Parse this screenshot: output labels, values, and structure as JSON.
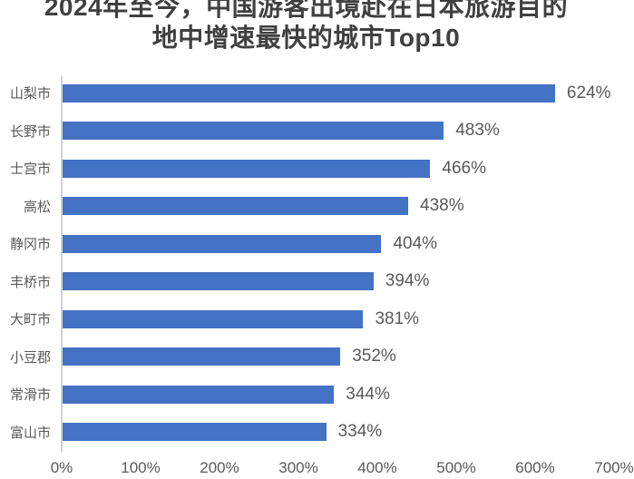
{
  "title": {
    "line1": "2024年至今，中国游客出境赴在日本旅游目的",
    "line2": "地中增速最快的城市Top10"
  },
  "chart_data": {
    "type": "bar",
    "orientation": "horizontal",
    "title": "2024年至今，中国游客出境赴在日本旅游目的地中增速最快的城市Top10",
    "categories": [
      "山梨市",
      "长野市",
      "士宫市",
      "高松",
      "静冈市",
      "丰桥市",
      "大町市",
      "小豆郡",
      "常滑市",
      "富山市"
    ],
    "values": [
      624,
      483,
      466,
      438,
      404,
      394,
      381,
      352,
      344,
      334
    ],
    "value_labels": [
      "624%",
      "483%",
      "466%",
      "438%",
      "404%",
      "394%",
      "381%",
      "352%",
      "344%",
      "334%"
    ],
    "x_ticks": [
      "0%",
      "100%",
      "200%",
      "300%",
      "400%",
      "500%",
      "600%",
      "700%"
    ],
    "x_tick_values": [
      0,
      100,
      200,
      300,
      400,
      500,
      600,
      700
    ],
    "xlim": [
      0,
      700
    ],
    "xlabel": "",
    "ylabel": "",
    "grid": false,
    "legend": null,
    "bar_color": "#4472C4",
    "label_color": "#595959",
    "title_color": "#404040",
    "axis_line_color": "#D2D2D2"
  }
}
